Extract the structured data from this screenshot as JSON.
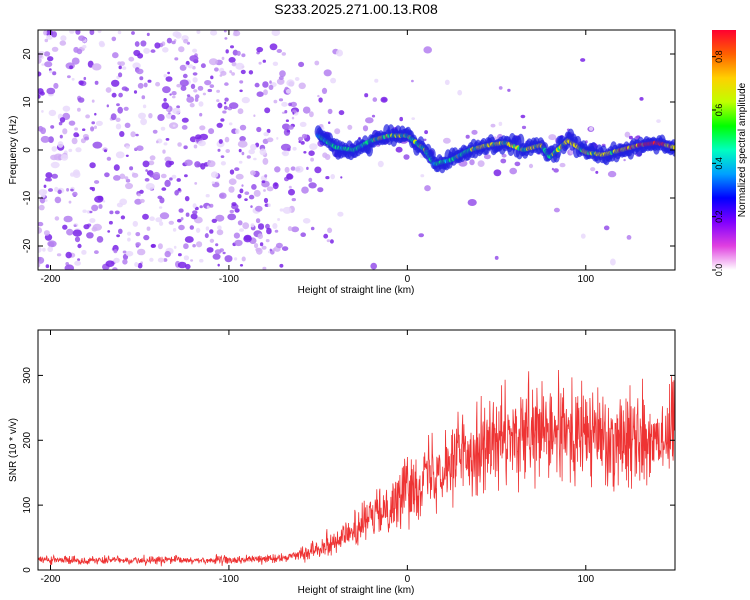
{
  "title": "S233.2025.271.00.13.R08",
  "colors": {
    "snr_line": "#ee3333",
    "scatter": [
      "#e9d9fb",
      "#d2b0f5",
      "#b47ff0",
      "#9550ea",
      "#7a25e6"
    ],
    "ridge": [
      "#2020e0",
      "#00c0ff",
      "#00e080",
      "#e0e000",
      "#ff2020"
    ],
    "colorbar": [
      "#ffffff",
      "#e040e0",
      "#8000ff",
      "#0000ff",
      "#00a0ff",
      "#00ffc0",
      "#00ff00",
      "#c0ff00",
      "#ffd000",
      "#ff6000",
      "#ff0030"
    ]
  },
  "chart_data": [
    {
      "type": "heatmap",
      "name": "spectrogram",
      "xlabel": "Height of straight line (km)",
      "ylabel": "Frequency (Hz)",
      "xlim": [
        -207,
        150
      ],
      "ylim": [
        -25,
        25
      ],
      "xticks": [
        -200,
        -100,
        0,
        100
      ],
      "yticks": [
        -20,
        -10,
        0,
        10,
        20
      ],
      "colorbar": {
        "label": "Normalized spectral amplitude",
        "range": [
          0,
          0.9
        ],
        "ticks": [
          0.0,
          0.2,
          0.4,
          0.6,
          0.8
        ]
      },
      "ridge": {
        "x": [
          -50,
          -40,
          -30,
          -20,
          -10,
          0,
          10,
          15,
          25,
          35,
          45,
          55,
          65,
          75,
          80,
          90,
          100,
          110,
          120,
          130,
          140,
          150
        ],
        "y": [
          3,
          0.5,
          0,
          2,
          3,
          3,
          0,
          -3,
          -2,
          0,
          1,
          1.5,
          0,
          1,
          -1.5,
          2,
          -0.5,
          -1,
          0,
          1,
          1.5,
          0.5
        ],
        "amplitude": [
          0.3,
          0.35,
          0.35,
          0.4,
          0.45,
          0.45,
          0.4,
          0.3,
          0.35,
          0.45,
          0.55,
          0.55,
          0.45,
          0.5,
          0.4,
          0.6,
          0.5,
          0.55,
          0.6,
          0.7,
          0.85,
          0.6
        ]
      }
    },
    {
      "type": "line",
      "name": "snr",
      "xlabel": "Height of straight line (km)",
      "ylabel": "SNR (10 * v/v)",
      "xlim": [
        -207,
        150
      ],
      "ylim": [
        0,
        370
      ],
      "xticks": [
        -200,
        -100,
        0,
        100
      ],
      "yticks": [
        0,
        100,
        200,
        300
      ],
      "series": [
        {
          "name": "SNR",
          "x": [
            -207,
            -150,
            -100,
            -70,
            -60,
            -50,
            -40,
            -30,
            -20,
            -10,
            0,
            10,
            20,
            30,
            40,
            50,
            60,
            70,
            80,
            90,
            100,
            110,
            120,
            130,
            140,
            150
          ],
          "y": [
            15,
            15,
            15,
            18,
            25,
            35,
            45,
            60,
            80,
            100,
            125,
            145,
            165,
            180,
            190,
            195,
            200,
            205,
            210,
            210,
            210,
            205,
            205,
            205,
            210,
            210
          ]
        }
      ]
    }
  ]
}
